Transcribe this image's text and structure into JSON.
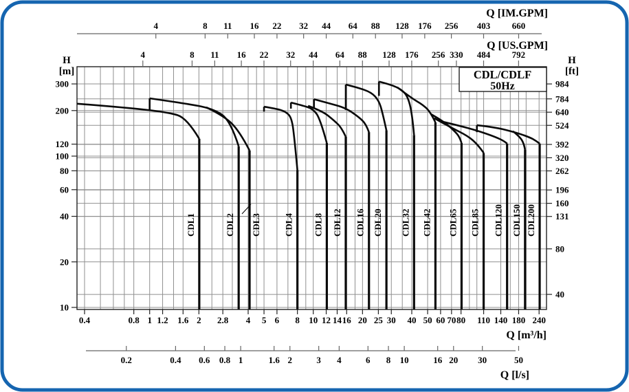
{
  "title_box": {
    "line1": "CDL/CDLF",
    "line2": "50Hz"
  },
  "colors": {
    "frame_blue": "#1565b0",
    "curve_black": "#0a0a0a",
    "grid_gray": "#8f8f8f",
    "axis_dark": "#222222",
    "background": "#ffffff"
  },
  "axes": {
    "top_im_gpm": {
      "label": "Q [IM.GPM]",
      "unit_per_m3h": 3.6662,
      "ticks": [
        4,
        8,
        11,
        16,
        22,
        32,
        44,
        64,
        88,
        128,
        176,
        256,
        403,
        660
      ]
    },
    "top_us_gpm": {
      "label": "Q [US.GPM]",
      "unit_per_m3h": 4.4029,
      "ticks": [
        4,
        8,
        11,
        16,
        22,
        32,
        44,
        64,
        88,
        128,
        176,
        256,
        330,
        484,
        792
      ]
    },
    "left_h_m": {
      "label_line1": "H",
      "label_line2": "[m]",
      "ticks": [
        300,
        200,
        120,
        100,
        80,
        60,
        40,
        20,
        10
      ]
    },
    "right_h_ft": {
      "label_line1": "H",
      "label_line2": "[ft]",
      "m_per_ft": 0.3048,
      "ticks": [
        984,
        784,
        640,
        524,
        392,
        320,
        262,
        196,
        160,
        131,
        80,
        40
      ]
    },
    "bottom_m3h": {
      "label": "Q [m³/h]",
      "ticks": [
        0.4,
        0.8,
        1,
        1.2,
        1.6,
        2,
        2.8,
        4,
        5,
        6,
        8,
        10,
        12,
        14,
        16,
        20,
        25,
        30,
        40,
        50,
        60,
        70,
        80,
        110,
        140,
        180,
        240
      ],
      "minor_gridlines": [
        0.5,
        0.6,
        0.7,
        1.4,
        2.4,
        3.2,
        4.5,
        7,
        9,
        18,
        35,
        90,
        100,
        160,
        200
      ]
    },
    "bottom_ls": {
      "label": "Q [l/s]",
      "m3h_per_unit": 3.6,
      "ticks": [
        0.2,
        0.4,
        0.6,
        0.8,
        1,
        1.6,
        2,
        3,
        4,
        6,
        8,
        10,
        16,
        20,
        30,
        50
      ]
    }
  },
  "chart_data": {
    "type": "line",
    "title": "CDL/CDLF 50Hz pump family performance envelopes",
    "x_unit": "m³/h",
    "y_unit": "m",
    "x_scale": "log",
    "y_scale": "log",
    "x_range": [
      0.36,
      260
    ],
    "y_range": [
      9.7,
      340
    ],
    "note": "Each series lists [Q in m3/h, H in m] along the top boundary of the pump envelope; step_from_h is the head where the left step rises from the neighbouring curve; the envelope then drops vertically to the axis at max flow.",
    "series": [
      {
        "name": "CDL1",
        "step_from_h": null,
        "points": [
          [
            0.36,
            222
          ],
          [
            0.69,
            210
          ],
          [
            1.3,
            195
          ],
          [
            1.69,
            178
          ],
          [
            2.01,
            130
          ]
        ]
      },
      {
        "name": "CDL2",
        "step_from_h": 202,
        "points": [
          [
            1.0,
            241
          ],
          [
            1.6,
            224
          ],
          [
            2.44,
            206
          ],
          [
            3.12,
            172
          ],
          [
            3.5,
            116
          ]
        ]
      },
      {
        "name": "CDL3",
        "step_from_h": null,
        "points": [
          [
            2.22,
            210
          ],
          [
            2.83,
            185
          ],
          [
            3.53,
            147
          ],
          [
            4.08,
            109
          ]
        ]
      },
      {
        "name": "CDL4",
        "step_from_h": 197,
        "points": [
          [
            5.0,
            212
          ],
          [
            5.9,
            206
          ],
          [
            6.8,
            197
          ],
          [
            7.4,
            178
          ],
          [
            7.7,
            126
          ],
          [
            8.0,
            81
          ]
        ]
      },
      {
        "name": "CDL8",
        "step_from_h": 206,
        "points": [
          [
            7.3,
            226
          ],
          [
            8.6,
            216
          ],
          [
            9.9,
            206
          ],
          [
            11.0,
            178
          ],
          [
            12.1,
            122
          ]
        ]
      },
      {
        "name": "CDL12",
        "step_from_h": null,
        "points": [
          [
            9.3,
            215
          ],
          [
            11.4,
            198
          ],
          [
            13.4,
            172
          ],
          [
            14.9,
            154
          ],
          [
            15.8,
            134
          ]
        ]
      },
      {
        "name": "CDL16",
        "step_from_h": 208,
        "points": [
          [
            10.1,
            238
          ],
          [
            12.6,
            223
          ],
          [
            15.8,
            208
          ],
          [
            19,
            181
          ],
          [
            21,
            163
          ],
          [
            21.9,
            144
          ]
        ]
      },
      {
        "name": "CDL20",
        "step_from_h": 202,
        "points": [
          [
            15.8,
            297
          ],
          [
            18.7,
            284
          ],
          [
            22.6,
            264
          ],
          [
            25.2,
            233
          ],
          [
            26.6,
            191
          ],
          [
            28,
            148
          ]
        ]
      },
      {
        "name": "CDL32",
        "step_from_h": 250,
        "points": [
          [
            25.2,
            311
          ],
          [
            29.8,
            297
          ],
          [
            34.5,
            276
          ],
          [
            37.8,
            248
          ],
          [
            40.2,
            191
          ],
          [
            41.3,
            138
          ]
        ]
      },
      {
        "name": "CDL42",
        "step_from_h": null,
        "points": [
          [
            32.6,
            285
          ],
          [
            40.2,
            240
          ],
          [
            46.6,
            219
          ],
          [
            52.1,
            195
          ],
          [
            55.8,
            167
          ]
        ]
      },
      {
        "name": "CDL65",
        "step_from_h": null,
        "points": [
          [
            52.7,
            189
          ],
          [
            62.9,
            169
          ],
          [
            72.7,
            147
          ],
          [
            78.4,
            134
          ],
          [
            80.6,
            122
          ]
        ]
      },
      {
        "name": "CDL85",
        "step_from_h": null,
        "points": [
          [
            54.9,
            178
          ],
          [
            69.1,
            155
          ],
          [
            87.9,
            136
          ],
          [
            101.5,
            119
          ],
          [
            110,
            105
          ]
        ]
      },
      {
        "name": "CDL120",
        "step_from_h": null,
        "points": [
          [
            58.6,
            171
          ],
          [
            76,
            160
          ],
          [
            101.6,
            147
          ],
          [
            129.5,
            134
          ],
          [
            146.4,
            126
          ],
          [
            153,
            121
          ]
        ]
      },
      {
        "name": "CDL150",
        "step_from_h": null,
        "points": [
          [
            166,
            146
          ],
          [
            183,
            134
          ],
          [
            194,
            121
          ],
          [
            197,
            110
          ]
        ]
      },
      {
        "name": "CDL200",
        "step_from_h": 144,
        "points": [
          [
            100,
            160
          ],
          [
            130,
            155
          ],
          [
            174,
            143
          ],
          [
            211,
            133
          ],
          [
            230,
            126
          ],
          [
            242,
            121
          ]
        ]
      }
    ],
    "legend_position": "labels-inside-plot-rotated"
  }
}
